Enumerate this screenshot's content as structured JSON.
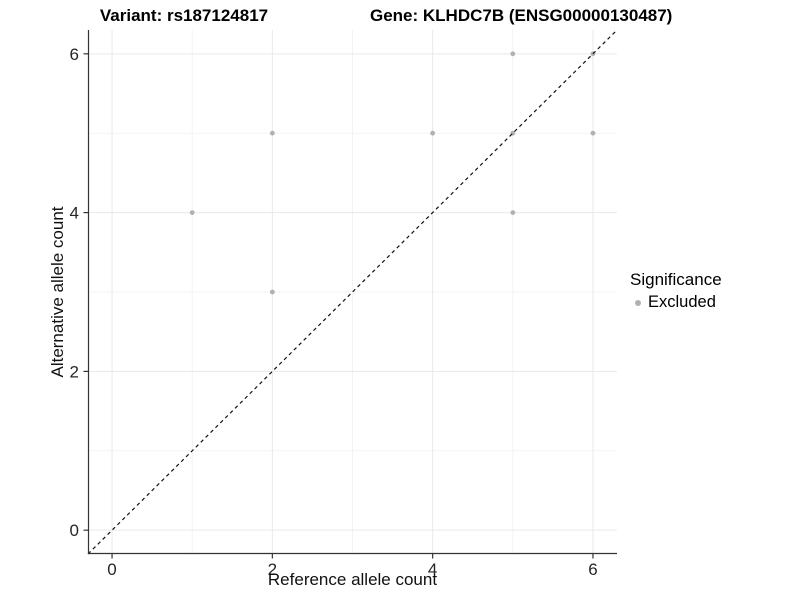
{
  "figure": {
    "title_left": "Variant: rs187124817",
    "title_right": "Gene: KLHDC7B (ENSG00000130487)"
  },
  "chart_data": {
    "type": "scatter",
    "title_left": "Variant: rs187124817",
    "title_right": "Gene: KLHDC7B (ENSG00000130487)",
    "xlabel": "Reference allele count",
    "ylabel": "Alternative allele count",
    "xlim": [
      -0.3,
      6.3
    ],
    "ylim": [
      -0.3,
      6.3
    ],
    "x_ticks": [
      0,
      2,
      4,
      6
    ],
    "y_ticks": [
      0,
      2,
      4,
      6
    ],
    "x_minor_ticks": [
      1,
      3,
      5
    ],
    "y_minor_ticks": [
      1,
      3,
      5
    ],
    "grid": true,
    "series": [
      {
        "name": "Excluded",
        "color": "#b1b1b1",
        "marker": "circle",
        "points": [
          [
            1,
            4
          ],
          [
            2,
            3
          ],
          [
            2,
            5
          ],
          [
            4,
            5
          ],
          [
            5,
            4
          ],
          [
            5,
            5
          ],
          [
            5,
            6
          ],
          [
            6,
            5
          ],
          [
            6,
            6
          ]
        ]
      }
    ],
    "reference_line": {
      "kind": "identity",
      "style": "dashed",
      "color": "#111111"
    },
    "legend": {
      "title": "Significance",
      "position": "right",
      "items": [
        {
          "label": "Excluded",
          "color": "#b1b1b1"
        }
      ]
    },
    "colors": {
      "panel_background": "#ffffff",
      "grid_major": "#e9e9e9",
      "grid_minor": "#f3f3f3",
      "axis_line": "#333333",
      "tick_label": "#262626",
      "point": "#b1b1b1"
    }
  }
}
